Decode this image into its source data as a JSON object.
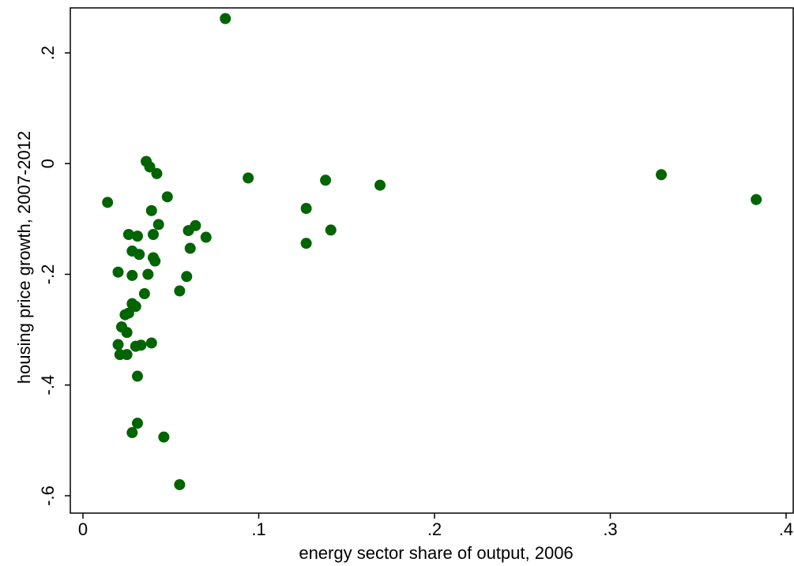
{
  "chart_data": {
    "type": "scatter",
    "title": "",
    "xlabel": "energy sector share of output, 2006",
    "ylabel": "housing price growth, 2007-2012",
    "xlim": [
      0,
      0.4
    ],
    "ylim": [
      -0.6,
      0.2
    ],
    "xticks": [
      0,
      0.1,
      0.2,
      0.3,
      0.4
    ],
    "xtick_labels": [
      "0",
      ".1",
      ".2",
      ".3",
      ".4"
    ],
    "yticks": [
      -0.6,
      -0.4,
      -0.2,
      0,
      0.2
    ],
    "ytick_labels": [
      "-.6",
      "-.4",
      "-.2",
      "0",
      ".2"
    ],
    "grid": false,
    "marker_color": "#006400",
    "points": [
      {
        "x": 0.014,
        "y": -0.07
      },
      {
        "x": 0.02,
        "y": -0.196
      },
      {
        "x": 0.02,
        "y": -0.327
      },
      {
        "x": 0.021,
        "y": -0.345
      },
      {
        "x": 0.022,
        "y": -0.295
      },
      {
        "x": 0.024,
        "y": -0.273
      },
      {
        "x": 0.025,
        "y": -0.345
      },
      {
        "x": 0.025,
        "y": -0.305
      },
      {
        "x": 0.026,
        "y": -0.128
      },
      {
        "x": 0.026,
        "y": -0.27
      },
      {
        "x": 0.028,
        "y": -0.158
      },
      {
        "x": 0.028,
        "y": -0.202
      },
      {
        "x": 0.028,
        "y": -0.253
      },
      {
        "x": 0.028,
        "y": -0.486
      },
      {
        "x": 0.03,
        "y": -0.33
      },
      {
        "x": 0.03,
        "y": -0.258
      },
      {
        "x": 0.031,
        "y": -0.131
      },
      {
        "x": 0.031,
        "y": -0.384
      },
      {
        "x": 0.031,
        "y": -0.469
      },
      {
        "x": 0.032,
        "y": -0.164
      },
      {
        "x": 0.033,
        "y": -0.328
      },
      {
        "x": 0.035,
        "y": -0.235
      },
      {
        "x": 0.036,
        "y": 0.004
      },
      {
        "x": 0.037,
        "y": -0.2
      },
      {
        "x": 0.038,
        "y": -0.006
      },
      {
        "x": 0.039,
        "y": -0.085
      },
      {
        "x": 0.039,
        "y": -0.324
      },
      {
        "x": 0.04,
        "y": -0.128
      },
      {
        "x": 0.04,
        "y": -0.17
      },
      {
        "x": 0.041,
        "y": -0.176
      },
      {
        "x": 0.042,
        "y": -0.018
      },
      {
        "x": 0.043,
        "y": -0.11
      },
      {
        "x": 0.046,
        "y": -0.494
      },
      {
        "x": 0.048,
        "y": -0.06
      },
      {
        "x": 0.055,
        "y": -0.23
      },
      {
        "x": 0.055,
        "y": -0.58
      },
      {
        "x": 0.059,
        "y": -0.204
      },
      {
        "x": 0.06,
        "y": -0.121
      },
      {
        "x": 0.061,
        "y": -0.153
      },
      {
        "x": 0.064,
        "y": -0.112
      },
      {
        "x": 0.07,
        "y": -0.133
      },
      {
        "x": 0.081,
        "y": 0.262
      },
      {
        "x": 0.094,
        "y": -0.026
      },
      {
        "x": 0.127,
        "y": -0.081
      },
      {
        "x": 0.127,
        "y": -0.144
      },
      {
        "x": 0.138,
        "y": -0.03
      },
      {
        "x": 0.141,
        "y": -0.12
      },
      {
        "x": 0.169,
        "y": -0.039
      },
      {
        "x": 0.329,
        "y": -0.02
      },
      {
        "x": 0.383,
        "y": -0.065
      }
    ]
  }
}
